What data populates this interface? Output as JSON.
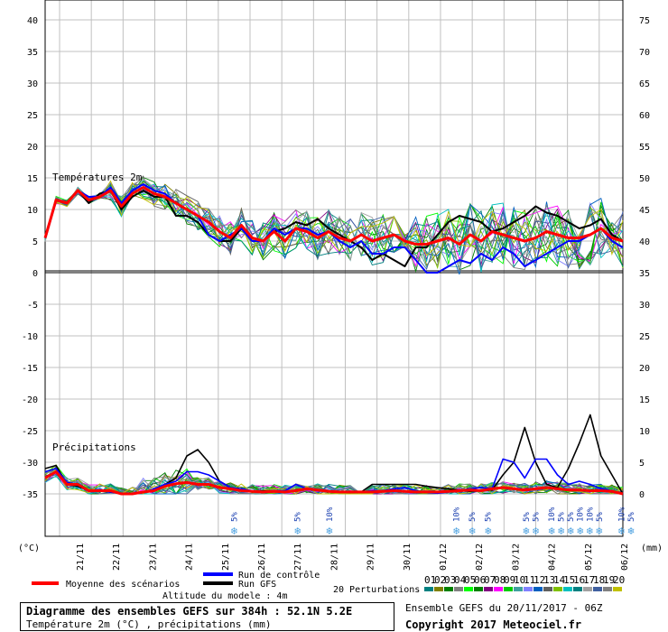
{
  "chart_data": {
    "type": "line",
    "top_panel_label": "Températures 2m",
    "bottom_panel_label": "Précipitations",
    "left_axis_ticks": [
      40,
      35,
      30,
      25,
      20,
      15,
      10,
      5,
      0,
      -5,
      -10,
      -15,
      -20,
      -25,
      -30,
      -35
    ],
    "right_axis_ticks": [
      75,
      70,
      65,
      60,
      55,
      50,
      45,
      40,
      35,
      30,
      25,
      20,
      15,
      10,
      5,
      0
    ],
    "left_unit": "(°C)",
    "right_unit": "(mm)",
    "x_ticks": [
      "21/11",
      "22/11",
      "23/11",
      "24/11",
      "25/11",
      "26/11",
      "27/11",
      "28/11",
      "29/11",
      "30/11",
      "01/12",
      "02/12",
      "03/12",
      "04/12",
      "05/12",
      "06/12"
    ],
    "temperature_mean": [
      5.5,
      11.5,
      11,
      13,
      11.5,
      12,
      13,
      10.5,
      12.5,
      13.5,
      12.5,
      12,
      11,
      10,
      9,
      8,
      6.5,
      5.5,
      7.5,
      5.5,
      5,
      6.5,
      5,
      7,
      6.5,
      5.5,
      6.5,
      5.5,
      5,
      6,
      5,
      5.5,
      6,
      5,
      4.5,
      4.5,
      5,
      5.5,
      4.5,
      6,
      5,
      6.5,
      6,
      5.5,
      5,
      5.5,
      6.5,
      6,
      5.5,
      5.5,
      6,
      7,
      5.5,
      5
    ],
    "temperature_gfs": [
      5.5,
      11.5,
      11,
      13,
      11,
      12.5,
      13,
      10,
      12,
      13,
      12,
      12,
      9,
      9,
      8,
      6,
      5,
      5,
      7,
      5,
      5,
      6.5,
      7,
      8,
      7.5,
      8.5,
      7,
      6,
      5,
      4,
      2,
      3,
      2,
      1,
      4,
      4,
      6,
      8,
      9,
      8.5,
      8,
      6.5,
      7,
      8,
      9,
      10.5,
      9.5,
      9,
      8,
      7,
      7.5,
      8.5,
      6,
      5
    ],
    "temperature_control": [
      5.5,
      11.5,
      11,
      13,
      12,
      12,
      13.5,
      11,
      13,
      14,
      13,
      12.5,
      11,
      10,
      9,
      6,
      5,
      6,
      7,
      5,
      5,
      7,
      6,
      7,
      7,
      6,
      6.5,
      5,
      4,
      5,
      3,
      3,
      4,
      4,
      2,
      0,
      0,
      1,
      2,
      1.5,
      3,
      2,
      4,
      3,
      1,
      2,
      3,
      4,
      5,
      5,
      6,
      7,
      5,
      4
    ],
    "precip_mean": [
      2.5,
      3.5,
      1.5,
      1.5,
      0.5,
      0.5,
      0.5,
      0,
      0,
      0.3,
      0.5,
      1.2,
      1.6,
      1.8,
      1.5,
      1.5,
      1.0,
      0.8,
      0.5,
      0.4,
      0.3,
      0.4,
      0.3,
      0.5,
      0.8,
      0.6,
      0.4,
      0.3,
      0.3,
      0.3,
      0.3,
      0.4,
      0.5,
      0.4,
      0.3,
      0.3,
      0.3,
      0.4,
      0.5,
      0.6,
      0.5,
      0.8,
      1.0,
      0.8,
      0.6,
      0.8,
      1.0,
      0.8,
      0.6,
      0.6,
      0.5,
      0.5,
      0.4,
      0
    ],
    "precip_gfs": [
      4,
      4.5,
      1.5,
      1.2,
      0.5,
      0.5,
      0.3,
      0,
      0,
      0.2,
      0.5,
      1.5,
      2.5,
      6,
      7,
      5,
      2,
      1,
      0.5,
      0.3,
      0.5,
      0.4,
      0.3,
      0.6,
      0.8,
      0.5,
      0.4,
      0.3,
      0.2,
      0.3,
      1.5,
      1.5,
      1.5,
      1.5,
      1.5,
      1.2,
      1.0,
      0.8,
      0.6,
      0.4,
      0.5,
      0.6,
      3,
      5,
      10.5,
      5,
      1.5,
      1.0,
      4,
      8,
      12.5,
      6,
      3,
      0
    ],
    "precip_control": [
      3.5,
      4,
      1.8,
      1.5,
      0.5,
      0.5,
      0.3,
      0,
      0,
      0.2,
      0.8,
      1.5,
      2,
      3.5,
      3.5,
      3,
      2,
      1,
      0.8,
      0.5,
      0.3,
      0.4,
      0.5,
      1.5,
      0.8,
      0.5,
      0.4,
      0.3,
      0.3,
      0.3,
      0.5,
      0.5,
      0.8,
      1.0,
      0.5,
      0.2,
      0.1,
      0.3,
      0.5,
      0.8,
      1.0,
      0.8,
      5.5,
      5,
      2.5,
      5.5,
      5.5,
      3,
      1.5,
      2,
      1.5,
      0.8,
      0.5,
      0
    ],
    "snow_markers": [
      {
        "tick": 5.5,
        "pct": "5%"
      },
      {
        "tick": 7.5,
        "pct": "5%"
      },
      {
        "tick": 8.5,
        "pct": "10%"
      },
      {
        "tick": 12.5,
        "pct": "10%"
      },
      {
        "tick": 13,
        "pct": "5%"
      },
      {
        "tick": 13.5,
        "pct": "5%"
      },
      {
        "tick": 14.7,
        "pct": "5%"
      },
      {
        "tick": 15,
        "pct": "5%"
      },
      {
        "tick": 15.5,
        "pct": "10%"
      },
      {
        "tick": 15.8,
        "pct": "5%"
      },
      {
        "tick": 16.1,
        "pct": "5%"
      },
      {
        "tick": 16.4,
        "pct": "10%"
      },
      {
        "tick": 16.7,
        "pct": "10%"
      },
      {
        "tick": 17,
        "pct": "5%"
      },
      {
        "tick": 17.7,
        "pct": "10%"
      },
      {
        "tick": 18,
        "pct": "5%"
      }
    ],
    "legend": {
      "mean": "Moyenne des scénarios",
      "control": "Run de contrôle",
      "gfs": "Run GFS",
      "perturbations": "20 Perturbations",
      "altitude": "Altitude du modele : 4m",
      "perturbation_ids": [
        "01",
        "02",
        "03",
        "04",
        "05",
        "06",
        "07",
        "08",
        "09",
        "10",
        "11",
        "12",
        "13",
        "14",
        "15",
        "16",
        "17",
        "18",
        "19",
        "20"
      ]
    },
    "colors": {
      "mean": "#ff0000",
      "control": "#0000ff",
      "gfs": "#000000",
      "perturbations": [
        "#008080",
        "#808000",
        "#008000",
        "#808080",
        "#00ff00",
        "#008000",
        "#800080",
        "#ff00ff",
        "#00cc00",
        "#40a0a0",
        "#8080ff",
        "#0060c0",
        "#606060",
        "#80c000",
        "#00c0c0",
        "#008080",
        "#a0a0a0",
        "#4060a0",
        "#808080",
        "#c0c000"
      ]
    }
  },
  "footer": {
    "title": "Diagramme des ensembles GEFS sur 384h : 52.1N 5.2E",
    "subtitle": "Température 2m (°C) , précipitations (mm)",
    "run_info": "Ensemble GEFS du 20/11/2017 - 06Z",
    "copyright": "Copyright 2017 Meteociel.fr"
  }
}
